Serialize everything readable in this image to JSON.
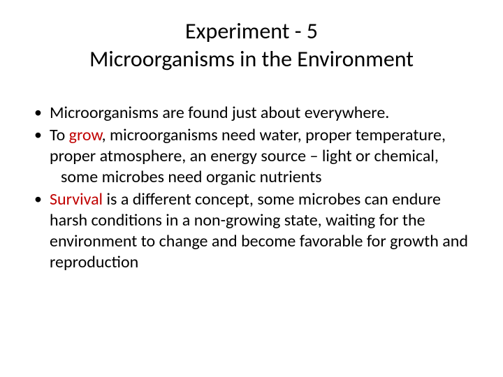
{
  "title": {
    "line1": "Experiment - 5",
    "line2": "Microorganisms in the Environment"
  },
  "bullets": {
    "b1": "Microorganisms are found just about everywhere.",
    "b2": {
      "pre": "To ",
      "em": "grow",
      "post1": ", microorganisms need water, proper temperature, proper atmosphere, an energy source – light or chemical,",
      "indent_line": "some microbes need organic nutrients"
    },
    "b3": {
      "em": "Survival",
      "post": " is a different concept, some microbes can endure harsh conditions in a non-growing state, waiting for the environment to change and become favorable for growth and reproduction"
    }
  },
  "colors": {
    "text": "#000000",
    "emphasis": "#c00000",
    "background": "#ffffff"
  },
  "typography": {
    "title_fontsize": 32,
    "body_fontsize": 24,
    "font_family": "Calibri"
  }
}
